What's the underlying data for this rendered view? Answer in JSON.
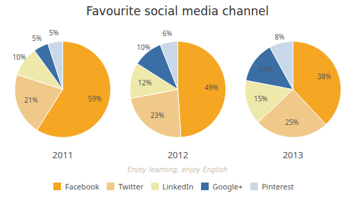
{
  "chart_data": {
    "type": "pie",
    "title": "Favourite social media channel",
    "subtitle": "Enjoy learning, enjoy English",
    "categories": [
      "Facebook",
      "Twitter",
      "LinkedIn",
      "Google+",
      "Pinterest"
    ],
    "colors": [
      "#F5A623",
      "#F0C98A",
      "#EEE8AA",
      "#3A6EA5",
      "#C8D8E8"
    ],
    "series": [
      {
        "name": "2011",
        "values": [
          59,
          21,
          10,
          5,
          5
        ],
        "value_labels": [
          "59%",
          "21%",
          "10%",
          "5%",
          "5%"
        ]
      },
      {
        "name": "2012",
        "values": [
          49,
          23,
          12,
          10,
          6
        ],
        "value_labels": [
          "49%",
          "23%",
          "12%",
          "10%",
          "6%"
        ]
      },
      {
        "name": "2013",
        "values": [
          38,
          25,
          15,
          14,
          8
        ],
        "value_labels": [
          "38%",
          "25%",
          "15%",
          "14%",
          "8%"
        ]
      }
    ],
    "data_labels": true,
    "legend": "bottom"
  }
}
